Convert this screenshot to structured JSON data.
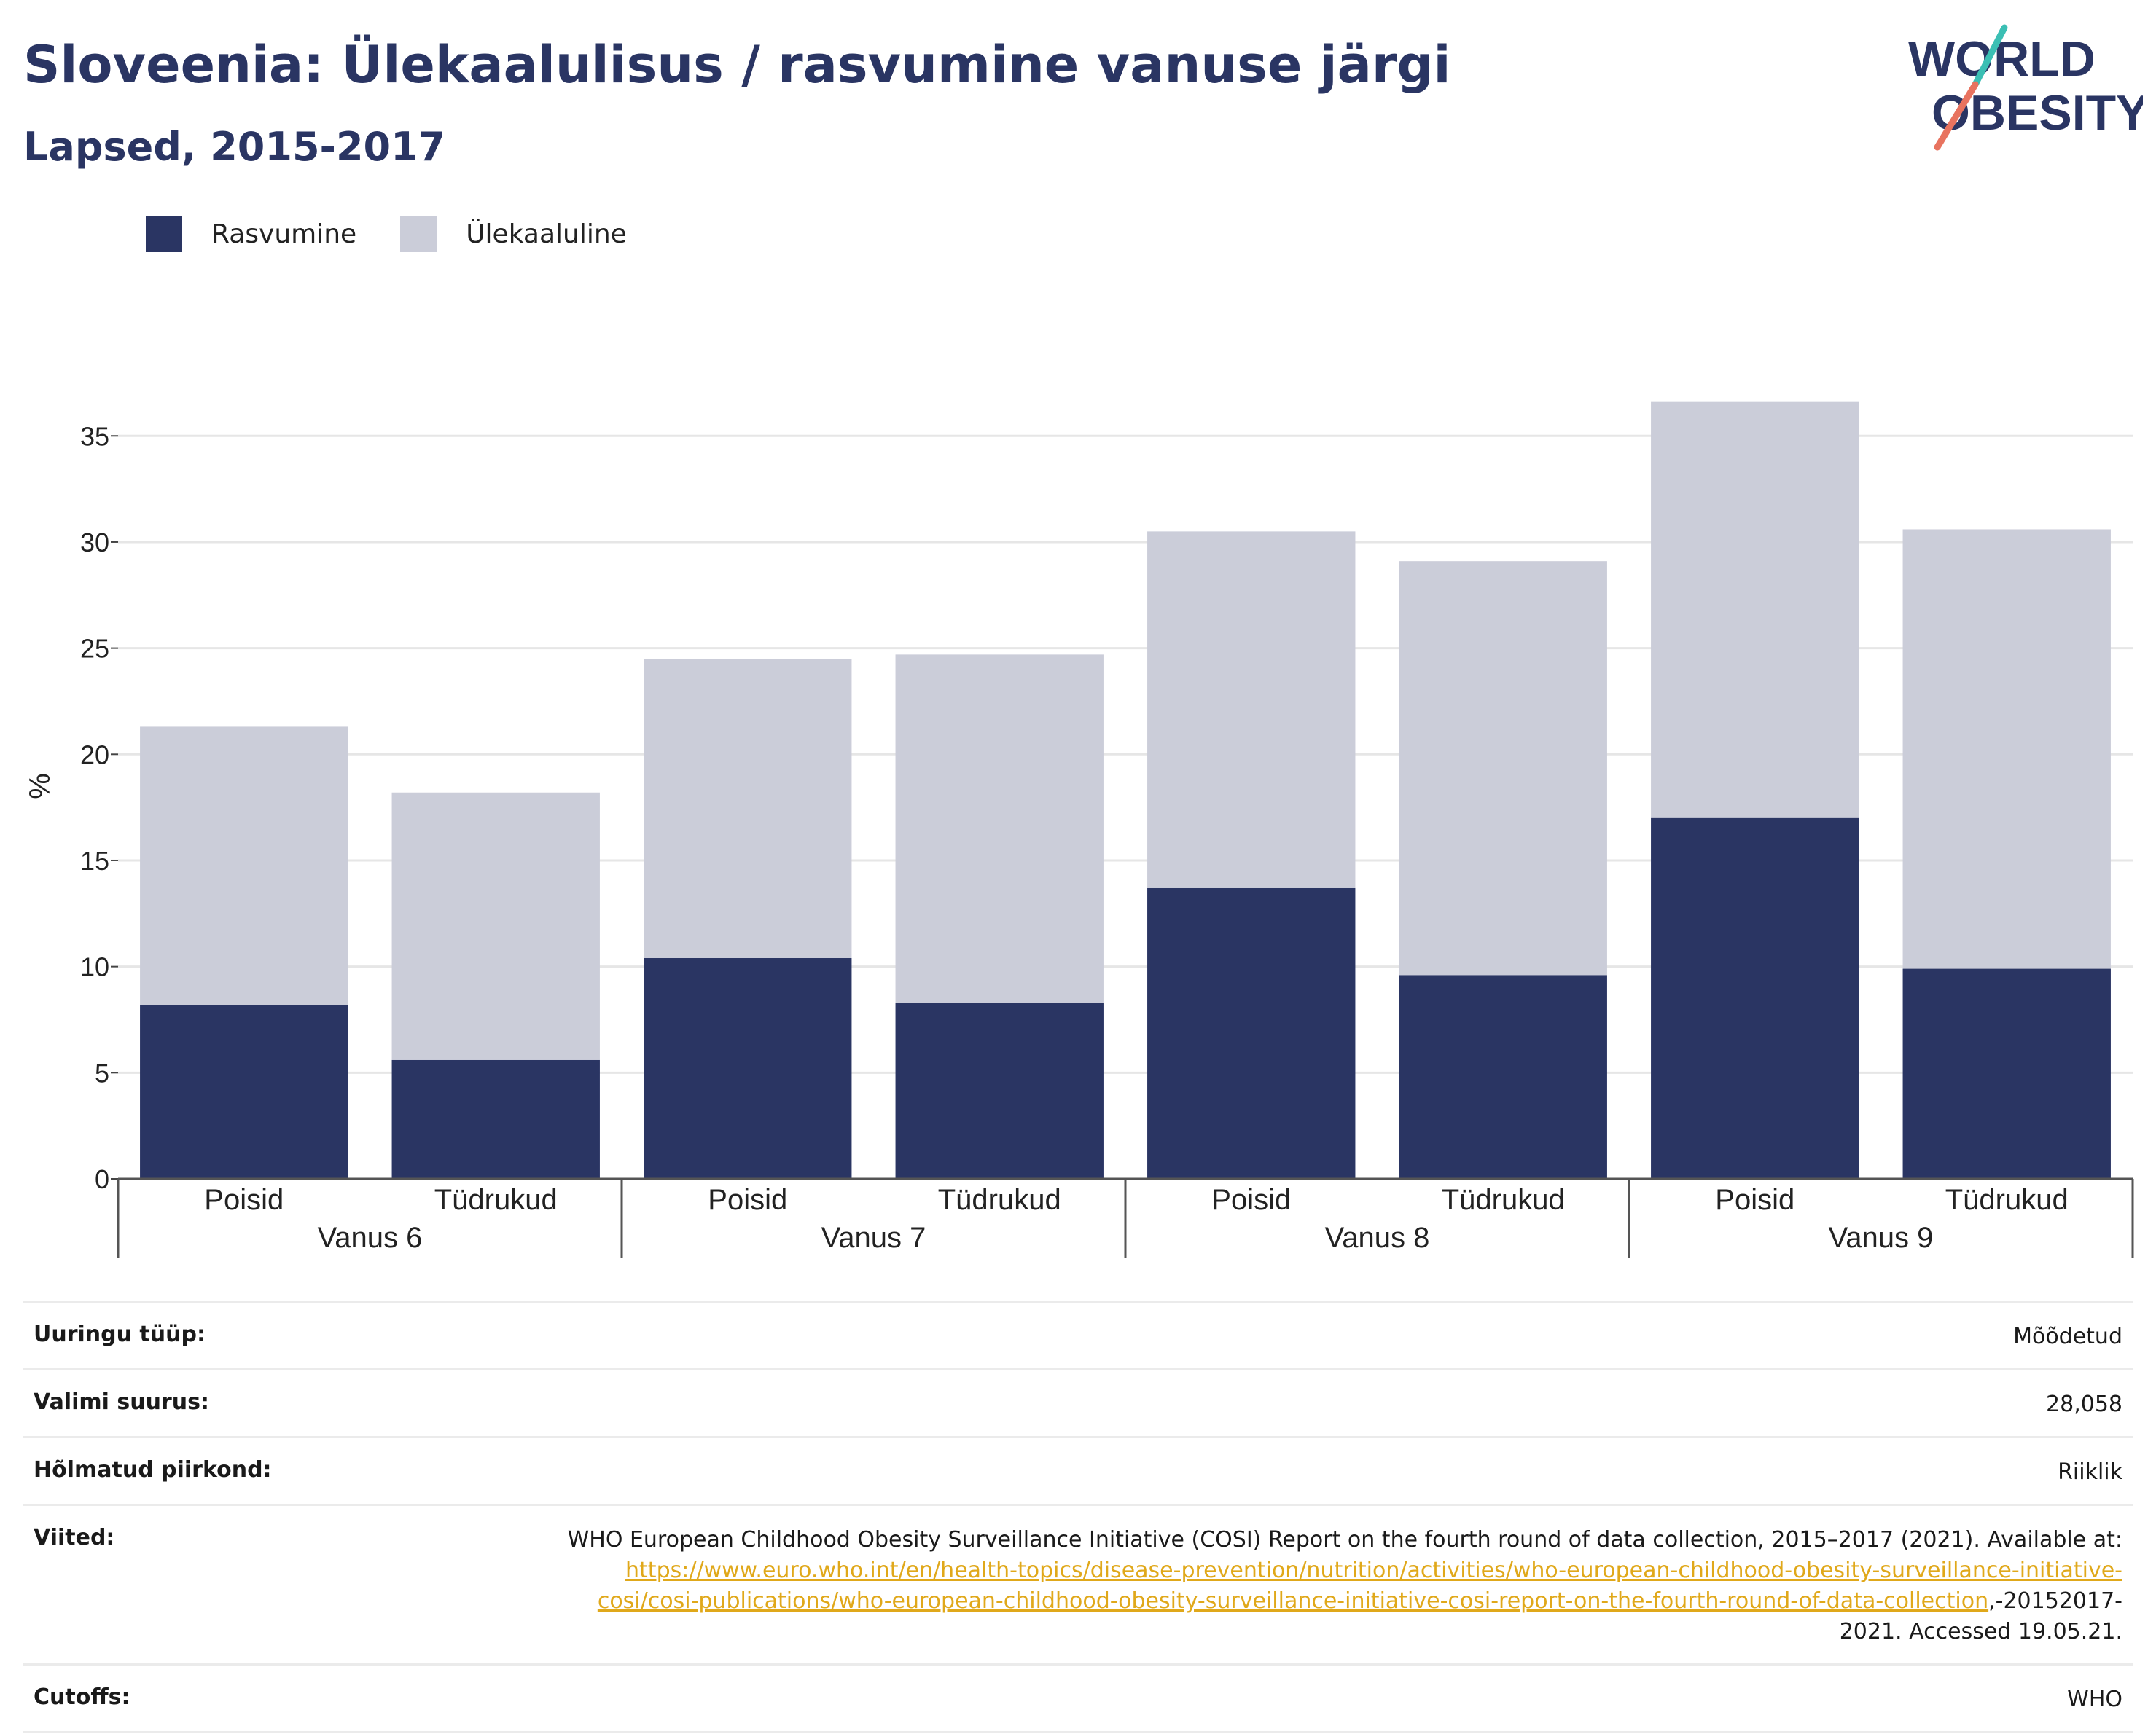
{
  "header": {
    "title": "Sloveenia: Ülekaalulisus / rasvumine vanuse järgi",
    "subtitle": "Lapsed, 2015-2017"
  },
  "logo": {
    "line1": "WORLD",
    "line2": "OBESITY",
    "text_color": "#2a3563",
    "slash_top_color": "#3bbfb4",
    "slash_bottom_color": "#e8735f"
  },
  "legend": [
    {
      "label": "Rasvumine",
      "color": "#2a3563"
    },
    {
      "label": "Ülekaaluline",
      "color": "#cbcdd9"
    }
  ],
  "chart_data": {
    "type": "bar",
    "stacked": true,
    "ylabel": "%",
    "ylim": [
      0,
      37
    ],
    "yticks": [
      0,
      5,
      10,
      15,
      20,
      25,
      30,
      35
    ],
    "grid": true,
    "legend_position": "top-left",
    "groups": [
      "Vanus 6",
      "Vanus 7",
      "Vanus 8",
      "Vanus 9"
    ],
    "categories": [
      "Poisid",
      "Tüdrukud",
      "Poisid",
      "Tüdrukud",
      "Poisid",
      "Tüdrukud",
      "Poisid",
      "Tüdrukud"
    ],
    "series": [
      {
        "name": "Rasvumine",
        "color": "#2a3563",
        "values": [
          8.2,
          5.6,
          10.4,
          8.3,
          13.7,
          9.6,
          17.0,
          9.9
        ]
      },
      {
        "name": "Ülekaaluline",
        "color": "#cbcdd9",
        "values": [
          13.1,
          12.6,
          14.1,
          16.4,
          16.8,
          19.5,
          19.6,
          20.7
        ]
      }
    ]
  },
  "info": [
    {
      "key": "Uuringu tüüp:",
      "value": "Mõõdetud"
    },
    {
      "key": "Valimi suurus:",
      "value": "28,058"
    },
    {
      "key": "Hõlmatud piirkond:",
      "value": "Riiklik"
    },
    {
      "key": "Viited:",
      "value_pre": "WHO European Childhood Obesity Surveillance Initiative (COSI) Report on the fourth round of data collection, 2015–2017 (2021). Available at: ",
      "value_link": "https://www.euro.who.int/en/health-topics/disease-prevention/nutrition/activities/who-european-childhood-obesity-surveillance-initiative-cosi/cosi-publications/who-european-childhood-obesity-surveillance-initiative-cosi-report-on-the-fourth-round-of-data-collection",
      "value_post": ",-20152017-2021. Accessed 19.05.21."
    },
    {
      "key": "Cutoffs:",
      "value": "WHO"
    }
  ]
}
